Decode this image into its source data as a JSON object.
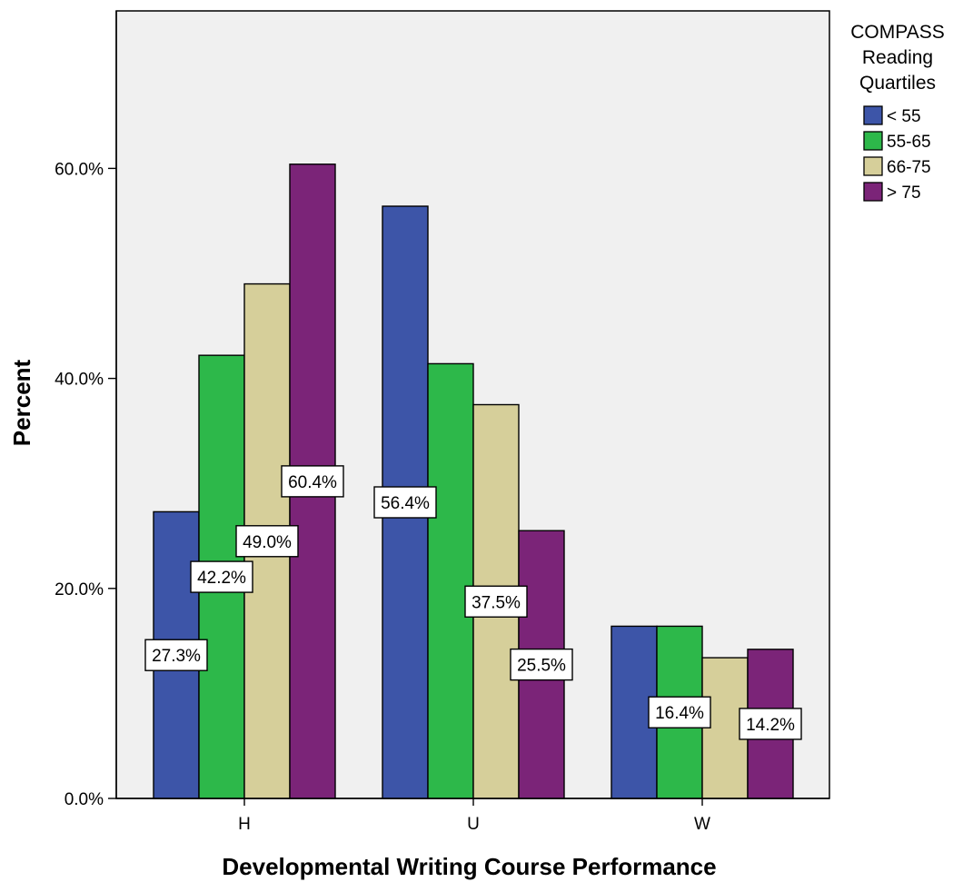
{
  "colors": {
    "plot_background": "#f0f0f0",
    "series": [
      "#3d55a8",
      "#2db84a",
      "#d6cf9a",
      "#7b2478"
    ]
  },
  "chart_data": {
    "type": "bar",
    "title": "",
    "xlabel": "Developmental Writing Course Performance",
    "ylabel": "Percent",
    "ylim": [
      0,
      75
    ],
    "yticks": [
      0,
      20,
      40,
      60
    ],
    "ytick_labels": [
      "0.0%",
      "20.0%",
      "40.0%",
      "60.0%"
    ],
    "categories": [
      "H",
      "U",
      "W"
    ],
    "legend_title": "COMPASS Reading Quartiles",
    "legend_position": "right",
    "series": [
      {
        "name": "< 55",
        "values": [
          27.3,
          56.4,
          16.4
        ]
      },
      {
        "name": "55-65",
        "values": [
          42.2,
          41.4,
          16.4
        ]
      },
      {
        "name": "66-75",
        "values": [
          49.0,
          37.5,
          13.4
        ]
      },
      {
        "name": "> 75",
        "values": [
          60.4,
          25.5,
          14.2
        ]
      }
    ],
    "data_labels": [
      {
        "category": "H",
        "series": "< 55",
        "text": "27.3%"
      },
      {
        "category": "H",
        "series": "55-65",
        "text": "42.2%"
      },
      {
        "category": "H",
        "series": "66-75",
        "text": "49.0%"
      },
      {
        "category": "H",
        "series": "> 75",
        "text": "60.4%"
      },
      {
        "category": "U",
        "series": "< 55",
        "text": "56.4%"
      },
      {
        "category": "U",
        "series": "66-75",
        "text": "37.5%"
      },
      {
        "category": "U",
        "series": "> 75",
        "text": "25.5%"
      },
      {
        "category": "W",
        "series": "55-65",
        "text": "16.4%"
      },
      {
        "category": "W",
        "series": "> 75",
        "text": "14.2%"
      }
    ]
  }
}
